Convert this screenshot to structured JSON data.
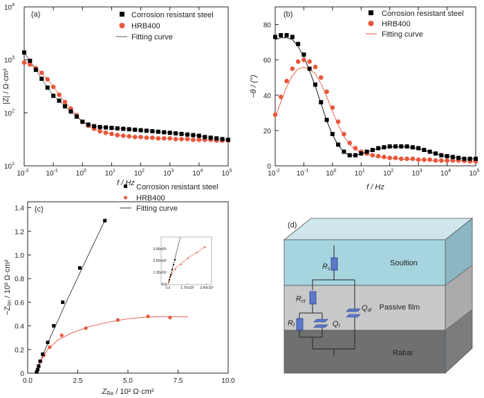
{
  "colors": {
    "steel": "#000000",
    "hrb": "#e8573d",
    "fit_a": "#555555",
    "fit_b": "#e8573d",
    "fit_c": "#333333"
  },
  "legend": {
    "steel": "Corrosion resistant steel",
    "hrb": "HRB400",
    "fit": "Fitting curve"
  },
  "panel_a": {
    "label": "(a)",
    "ylabel": "|Z| / Ω·cm²",
    "xlabel": "f / Hz",
    "xticks": [
      {
        "e": -2,
        "t": "10"
      },
      {
        "e": -1,
        "t": "10"
      },
      {
        "e": 0,
        "t": "10"
      },
      {
        "e": 1,
        "t": "10"
      },
      {
        "e": 2,
        "t": "10"
      },
      {
        "e": 3,
        "t": "10"
      },
      {
        "e": 4,
        "t": "10"
      },
      {
        "e": 5,
        "t": "10"
      }
    ],
    "xsup": [
      "-2",
      "-1",
      "0",
      "1",
      "2",
      "3",
      "4",
      "5"
    ],
    "yticks": [
      {
        "e": 1,
        "t": "10",
        "s": "1"
      },
      {
        "e": 2,
        "t": "10",
        "s": "2"
      },
      {
        "e": 3,
        "t": "10",
        "s": "3"
      },
      {
        "e": 4,
        "t": "10",
        "s": "4"
      }
    ]
  },
  "panel_b": {
    "label": "(b)",
    "ylabel": "−θ / (°)",
    "xlabel": "f / Hz",
    "yticks": [
      "0",
      "20",
      "40",
      "60",
      "80"
    ],
    "xsup": [
      "-2",
      "-1",
      "0",
      "1",
      "2",
      "3",
      "4",
      "5"
    ]
  },
  "panel_c": {
    "label": "(c)",
    "ylabel": "−Z",
    "ylabel_sub": "Im",
    "ylabel_rest": " / 10³ Ω·cm²",
    "xlabel": "Z",
    "xlabel_sub": "Re",
    "xlabel_rest": " / 10² Ω·cm²",
    "xticks": [
      "0.0",
      "2.5",
      "5.0",
      "7.5",
      "10.0"
    ],
    "yticks": [
      "0",
      "0.2",
      "0.4",
      "0.6",
      "0.8",
      "1.0",
      "1.2",
      "1.4"
    ],
    "inset": {
      "xticks": [
        "0.0",
        "1.70x10²",
        "3.40x10²"
      ],
      "yticks": [
        "0.0",
        "1.30x10²",
        "2.60x10²",
        "3.90x10²"
      ]
    }
  },
  "panel_d": {
    "label": "(d)",
    "solution": "Soultion",
    "film": "Passive film",
    "rebar": "Rabar",
    "Rs": "R",
    "Rs_sub": "s",
    "Rct": "R",
    "Rct_sub": "ct",
    "Rf": "R",
    "Rf_sub": "f",
    "Qf": "Q",
    "Qf_sub": "f",
    "Qdl": "Q",
    "Qdl_sub": "dl"
  },
  "chart_data": [
    {
      "type": "scatter",
      "title": "",
      "xlabel": "f / Hz",
      "ylabel": "|Z| / Ω·cm²",
      "xscale": "log",
      "yscale": "log",
      "xlim": [
        0.01,
        100000
      ],
      "ylim": [
        10,
        10000
      ],
      "series": [
        {
          "name": "Corrosion resistant steel",
          "x": [
            0.01,
            0.0158,
            0.0251,
            0.0398,
            0.0631,
            0.1,
            0.158,
            0.251,
            0.398,
            0.631,
            1,
            1.58,
            2.51,
            3.98,
            6.31,
            10,
            15.8,
            25.1,
            39.8,
            63.1,
            100,
            158,
            251,
            398,
            631,
            1000,
            1580,
            2510,
            3980,
            6310,
            10000,
            15800,
            25100,
            39800,
            63100,
            100000
          ],
          "y": [
            1380,
            960,
            650,
            440,
            300,
            210,
            170,
            133,
            106,
            85,
            68,
            60,
            56,
            54,
            53,
            52,
            51,
            50,
            49,
            48,
            47,
            46,
            45,
            44,
            43,
            42,
            41,
            40,
            39,
            38,
            37,
            35,
            34,
            33,
            32,
            31
          ]
        },
        {
          "name": "HRB400",
          "x": [
            0.01,
            0.0158,
            0.0251,
            0.0398,
            0.0631,
            0.1,
            0.158,
            0.251,
            0.398,
            0.631,
            1,
            1.58,
            2.51,
            3.98,
            6.31,
            10,
            15.8,
            25.1,
            39.8,
            63.1,
            100,
            158,
            251,
            398,
            631,
            1000,
            1580,
            2510,
            3980,
            6310,
            10000,
            15800,
            25100,
            39800,
            63100,
            100000
          ],
          "y": [
            890,
            820,
            700,
            570,
            430,
            310,
            220,
            160,
            120,
            90,
            68,
            57,
            50,
            45,
            42,
            40,
            38,
            37,
            36,
            35,
            35,
            34,
            34,
            33,
            33,
            33,
            32,
            32,
            32,
            31,
            31,
            31,
            31,
            30,
            30,
            30
          ]
        }
      ]
    },
    {
      "type": "scatter",
      "title": "",
      "xlabel": "f / Hz",
      "ylabel": "−θ / (°)",
      "xscale": "log",
      "xlim": [
        0.01,
        100000
      ],
      "ylim": [
        0,
        90
      ],
      "series": [
        {
          "name": "Corrosion resistant steel",
          "x": [
            0.01,
            0.0158,
            0.0251,
            0.0398,
            0.0631,
            0.1,
            0.158,
            0.251,
            0.398,
            0.631,
            1,
            1.58,
            2.51,
            3.98,
            6.31,
            10,
            15.8,
            25.1,
            39.8,
            63.1,
            100,
            158,
            251,
            398,
            631,
            1000,
            1580,
            2510,
            3980,
            6310,
            10000,
            15800,
            25100,
            39800,
            63100,
            100000
          ],
          "y": [
            73,
            74,
            74,
            73,
            69,
            63,
            55,
            46,
            36,
            26,
            18,
            12,
            8,
            6,
            6,
            7,
            8,
            9,
            10,
            10.5,
            11,
            11,
            11,
            11,
            10.5,
            10,
            9,
            8,
            7,
            6,
            5.5,
            5,
            4.5,
            4,
            4,
            4
          ]
        },
        {
          "name": "HRB400",
          "x": [
            0.01,
            0.0158,
            0.0251,
            0.0398,
            0.0631,
            0.1,
            0.158,
            0.251,
            0.398,
            0.631,
            1,
            1.58,
            2.51,
            3.98,
            6.31,
            10,
            15.8,
            25.1,
            39.8,
            63.1,
            100,
            158,
            251,
            398,
            631,
            1000,
            1580,
            2510,
            3980,
            6310,
            10000,
            15800,
            25100,
            39800,
            63100,
            100000
          ],
          "y": [
            29,
            39,
            48,
            55,
            59,
            60,
            59,
            56,
            50,
            42,
            33,
            25,
            18,
            13,
            10,
            8,
            7,
            6,
            5.5,
            5,
            4.5,
            4.5,
            4,
            4,
            4,
            3.5,
            3.5,
            3.5,
            3,
            3,
            3,
            3,
            3,
            2.8,
            2.6,
            2.5
          ]
        }
      ]
    },
    {
      "type": "scatter",
      "title": "",
      "xlabel": "Z_Re / 10² Ω·cm²",
      "ylabel": "−Z_Im / 10³ Ω·cm²",
      "xlim": [
        0,
        10
      ],
      "ylim": [
        0,
        1.45
      ],
      "series": [
        {
          "name": "Corrosion resistant steel",
          "x": [
            0.45,
            0.5,
            0.55,
            0.62,
            0.75,
            1.0,
            1.3,
            1.75,
            2.6,
            3.85
          ],
          "y": [
            0.01,
            0.03,
            0.06,
            0.1,
            0.16,
            0.26,
            0.4,
            0.6,
            0.89,
            1.29
          ]
        },
        {
          "name": "HRB400",
          "x": [
            0.45,
            0.5,
            0.55,
            0.65,
            0.8,
            1.1,
            1.7,
            2.9,
            4.5,
            6.0,
            7.1
          ],
          "y": [
            0.01,
            0.03,
            0.06,
            0.1,
            0.15,
            0.22,
            0.32,
            0.38,
            0.45,
            0.48,
            0.47
          ]
        }
      ]
    }
  ]
}
